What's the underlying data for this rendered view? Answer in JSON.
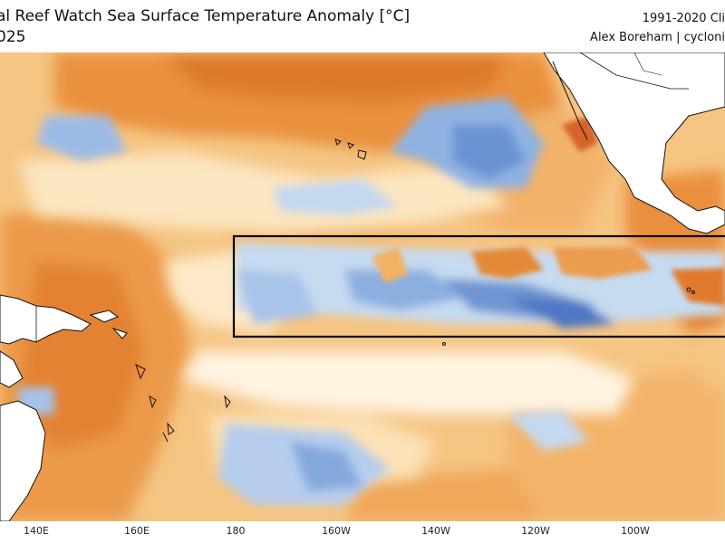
{
  "header": {
    "title": "al Reef Watch Sea Surface Temperature Anomaly [°C]",
    "date": "025",
    "climatology": "1991-2020 Cli",
    "credit": "Alex Boreham | cycloni"
  },
  "map": {
    "region": "Tropical Pacific Ocean",
    "highlight_box": "Niño 3.4 region outline",
    "colors": {
      "warm_strong": "#d9742a",
      "warm": "#f0a85a",
      "warm_light": "#f8d49a",
      "neutral": "#ffffff",
      "cool_light": "#c9dcf0",
      "cool": "#7ea6dc",
      "cool_strong": "#4a74c2",
      "land": "#ffffff",
      "coastline": "#111111"
    }
  },
  "lon_ticks": [
    {
      "label": "140E"
    },
    {
      "label": "160E"
    },
    {
      "label": "180"
    },
    {
      "label": "160W"
    },
    {
      "label": "140W"
    },
    {
      "label": "120W"
    },
    {
      "label": "100W"
    }
  ]
}
